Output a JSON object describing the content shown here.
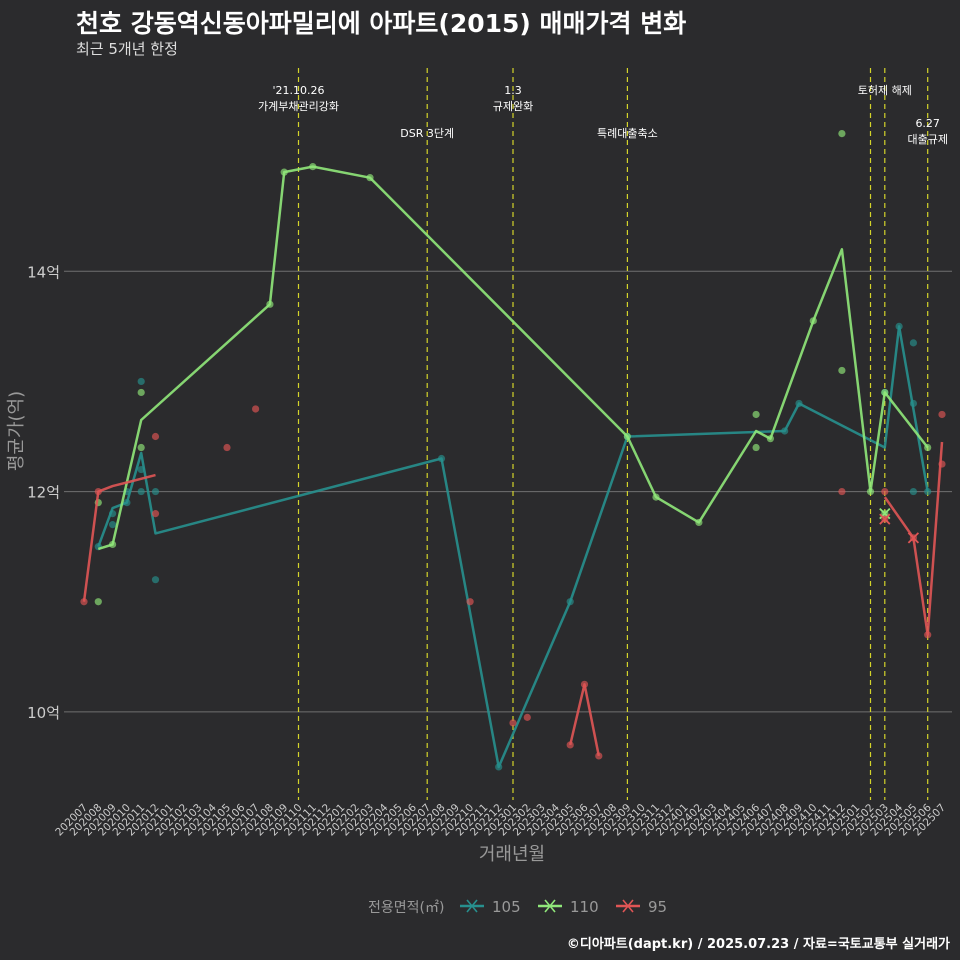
{
  "title": "천호 강동역신동아파밀리에 아파트(2015) 매매가격 변화",
  "subtitle": "최근 5개년 한정",
  "footer": "©디아파트(dapt.kr) / 2025.07.23 / 자료=국토교통부 실거래가",
  "colors": {
    "background": "#2b2b2d",
    "grid": "#707070",
    "event_line": "#d4d42a",
    "text": "#ffffff"
  },
  "chart_data": {
    "type": "line",
    "xlabel": "거래년월",
    "ylabel": "평균가(억)",
    "y_unit_suffix": "억",
    "ylim": [
      9.2,
      15.9
    ],
    "yticks": [
      10,
      12,
      14
    ],
    "grid": true,
    "legend": {
      "title": "전용면적(㎡)",
      "position": "bottom"
    },
    "categories": [
      "202007",
      "202008",
      "202009",
      "202010",
      "202011",
      "202012",
      "202101",
      "202102",
      "202103",
      "202104",
      "202105",
      "202106",
      "202107",
      "202108",
      "202109",
      "202110",
      "202111",
      "202112",
      "202201",
      "202202",
      "202203",
      "202204",
      "202205",
      "202206",
      "202207",
      "202208",
      "202209",
      "202210",
      "202211",
      "202212",
      "202301",
      "202302",
      "202303",
      "202304",
      "202305",
      "202306",
      "202307",
      "202308",
      "202309",
      "202310",
      "202311",
      "202312",
      "202401",
      "202402",
      "202403",
      "202404",
      "202405",
      "202406",
      "202407",
      "202408",
      "202409",
      "202410",
      "202411",
      "202412",
      "202501",
      "202502",
      "202503",
      "202504",
      "202505",
      "202506",
      "202507"
    ],
    "events": [
      {
        "x": "202110",
        "label": [
          "'21.10.26",
          "가계부채관리강화"
        ],
        "row": 1
      },
      {
        "x": "202207",
        "label": [
          "DSR 3단계"
        ],
        "row": 2
      },
      {
        "x": "202301",
        "label": [
          "1.3",
          "규제완화"
        ],
        "row": 1
      },
      {
        "x": "202309",
        "label": [
          "특례대출축소"
        ],
        "row": 2
      },
      {
        "x": "202502",
        "label": [],
        "row": 1
      },
      {
        "x": "202503",
        "label": [
          "토허제 해제"
        ],
        "row": 1
      },
      {
        "x": "202506",
        "label": [
          "6.27",
          "대출규제"
        ],
        "row": 3
      }
    ],
    "series": [
      {
        "name": "105",
        "color": "#27908e",
        "line": [
          [
            "202008",
            11.5
          ],
          [
            "202009",
            11.85
          ],
          [
            "202010",
            11.9
          ],
          [
            "202011",
            12.35
          ],
          [
            "202012",
            11.62
          ],
          [
            "202208",
            12.3
          ],
          [
            "202212",
            9.5
          ],
          [
            "202305",
            11.0
          ],
          [
            "202309",
            12.5
          ],
          [
            "202408",
            12.55
          ],
          [
            "202409",
            12.8
          ],
          [
            "202503",
            12.4
          ],
          [
            "202504",
            13.5
          ],
          [
            "202506",
            12.0
          ]
        ],
        "points": [
          [
            "202008",
            11.5
          ],
          [
            "202009",
            11.8
          ],
          [
            "202009",
            11.7
          ],
          [
            "202010",
            11.9
          ],
          [
            "202010",
            12.0
          ],
          [
            "202011",
            13.0
          ],
          [
            "202011",
            12.2
          ],
          [
            "202011",
            12.0
          ],
          [
            "202012",
            12.0
          ],
          [
            "202012",
            11.2
          ],
          [
            "202208",
            12.3
          ],
          [
            "202212",
            9.5
          ],
          [
            "202305",
            11.0
          ],
          [
            "202309",
            12.5
          ],
          [
            "202408",
            12.55
          ],
          [
            "202409",
            12.8
          ],
          [
            "202503",
            12.9
          ],
          [
            "202504",
            13.5
          ],
          [
            "202505",
            13.35
          ],
          [
            "202505",
            12.8
          ],
          [
            "202505",
            12.0
          ],
          [
            "202506",
            12.0
          ]
        ],
        "crosses": []
      },
      {
        "name": "110",
        "color": "#90e87a",
        "line": [
          [
            "202008",
            11.48
          ],
          [
            "202009",
            11.52
          ],
          [
            "202011",
            12.65
          ],
          [
            "202108",
            13.7
          ],
          [
            "202109",
            14.9
          ],
          [
            "202111",
            14.95
          ],
          [
            "202203",
            14.85
          ],
          [
            "202309",
            12.5
          ],
          [
            "202311",
            11.95
          ],
          [
            "202402",
            11.72
          ],
          [
            "202406",
            12.55
          ],
          [
            "202407",
            12.48
          ],
          [
            "202410",
            13.55
          ],
          [
            "202412",
            14.2
          ],
          [
            "202502",
            12.0
          ],
          [
            "202503",
            12.9
          ],
          [
            "202506",
            12.4
          ]
        ],
        "points": [
          [
            "202008",
            11.0
          ],
          [
            "202008",
            11.9
          ],
          [
            "202009",
            11.52
          ],
          [
            "202011",
            12.9
          ],
          [
            "202011",
            12.4
          ],
          [
            "202108",
            13.7
          ],
          [
            "202109",
            14.9
          ],
          [
            "202111",
            14.95
          ],
          [
            "202203",
            14.85
          ],
          [
            "202309",
            12.5
          ],
          [
            "202311",
            11.95
          ],
          [
            "202402",
            11.72
          ],
          [
            "202406",
            12.7
          ],
          [
            "202406",
            12.4
          ],
          [
            "202407",
            12.48
          ],
          [
            "202410",
            13.55
          ],
          [
            "202412",
            15.25
          ],
          [
            "202412",
            13.1
          ],
          [
            "202502",
            12.0
          ],
          [
            "202503",
            12.9
          ],
          [
            "202503",
            11.8
          ],
          [
            "202506",
            12.4
          ]
        ],
        "crosses": [
          [
            "202503",
            11.8
          ]
        ]
      },
      {
        "name": "95",
        "color": "#e05555",
        "line_segments": [
          [
            [
              "202007",
              11.0
            ],
            [
              "202008",
              12.0
            ],
            [
              "202009",
              12.05
            ],
            [
              "202012",
              12.15
            ]
          ],
          [
            [
              "202305",
              9.7
            ],
            [
              "202306",
              10.25
            ],
            [
              "202307",
              9.6
            ]
          ],
          [
            [
              "202503",
              11.95
            ],
            [
              "202505",
              11.58
            ],
            [
              "202506",
              10.7
            ],
            [
              "202507",
              12.45
            ]
          ]
        ],
        "points": [
          [
            "202007",
            11.0
          ],
          [
            "202008",
            12.0
          ],
          [
            "202012",
            12.5
          ],
          [
            "202012",
            11.8
          ],
          [
            "202105",
            12.4
          ],
          [
            "202107",
            12.75
          ],
          [
            "202210",
            11.0
          ],
          [
            "202301",
            9.9
          ],
          [
            "202302",
            9.95
          ],
          [
            "202305",
            9.7
          ],
          [
            "202306",
            10.25
          ],
          [
            "202307",
            9.6
          ],
          [
            "202412",
            12.0
          ],
          [
            "202503",
            12.0
          ],
          [
            "202503",
            11.75
          ],
          [
            "202505",
            11.58
          ],
          [
            "202506",
            10.7
          ],
          [
            "202507",
            12.7
          ],
          [
            "202507",
            12.25
          ]
        ],
        "crosses": [
          [
            "202503",
            11.75
          ],
          [
            "202505",
            11.58
          ]
        ]
      }
    ]
  }
}
